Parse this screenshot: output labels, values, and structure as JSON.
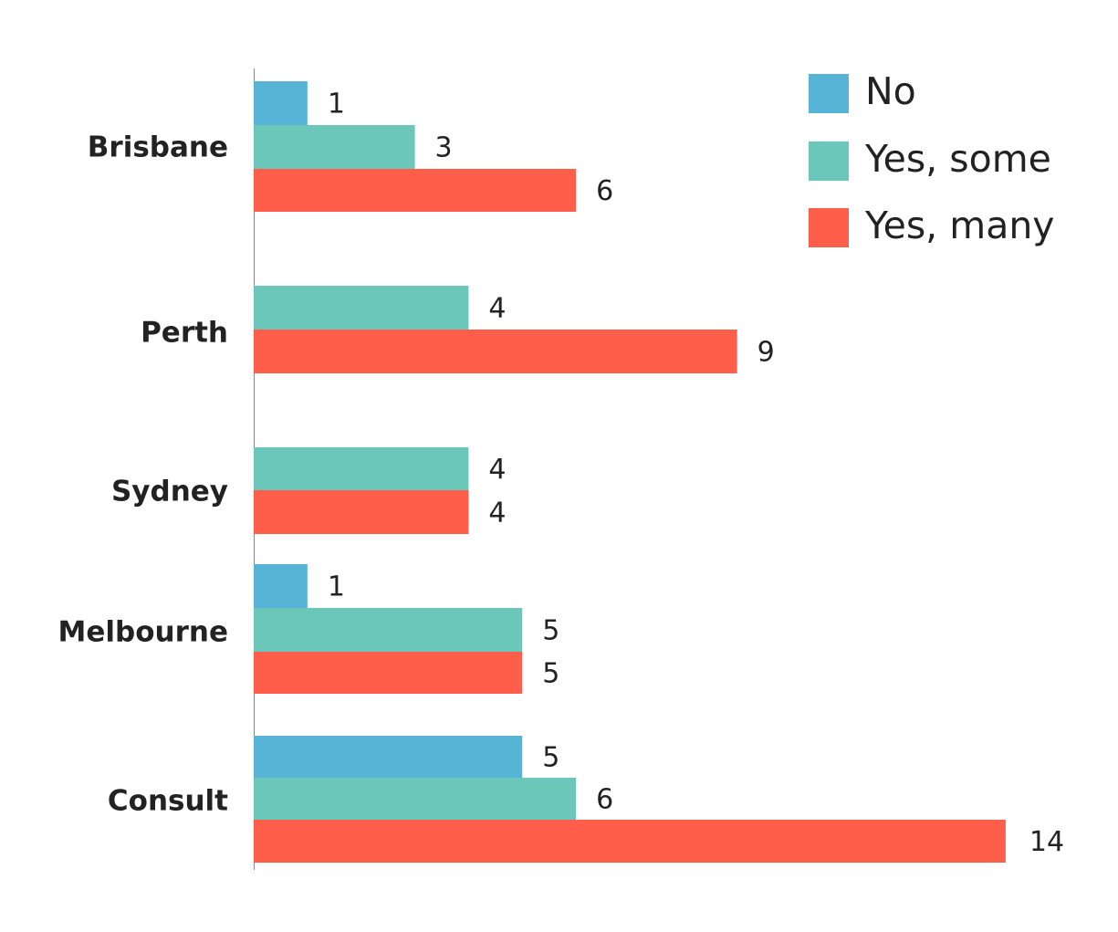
{
  "chart_data": {
    "type": "bar",
    "orientation": "horizontal",
    "title": "",
    "xlabel": "",
    "ylabel": "",
    "xlim": [
      0,
      14
    ],
    "grid": false,
    "legend_position": "top-right",
    "categories": [
      "Brisbane",
      "Perth",
      "Sydney",
      "Melbourne",
      "Consult"
    ],
    "series": [
      {
        "name": "No",
        "color": "#58B4D6",
        "values": [
          1,
          null,
          null,
          1,
          5
        ]
      },
      {
        "name": "Yes, some",
        "color": "#6AC7BA",
        "values": [
          3,
          4,
          4,
          5,
          6
        ]
      },
      {
        "name": "Yes, many",
        "color": "#FF5E4A",
        "values": [
          6,
          9,
          4,
          5,
          14
        ]
      }
    ]
  }
}
